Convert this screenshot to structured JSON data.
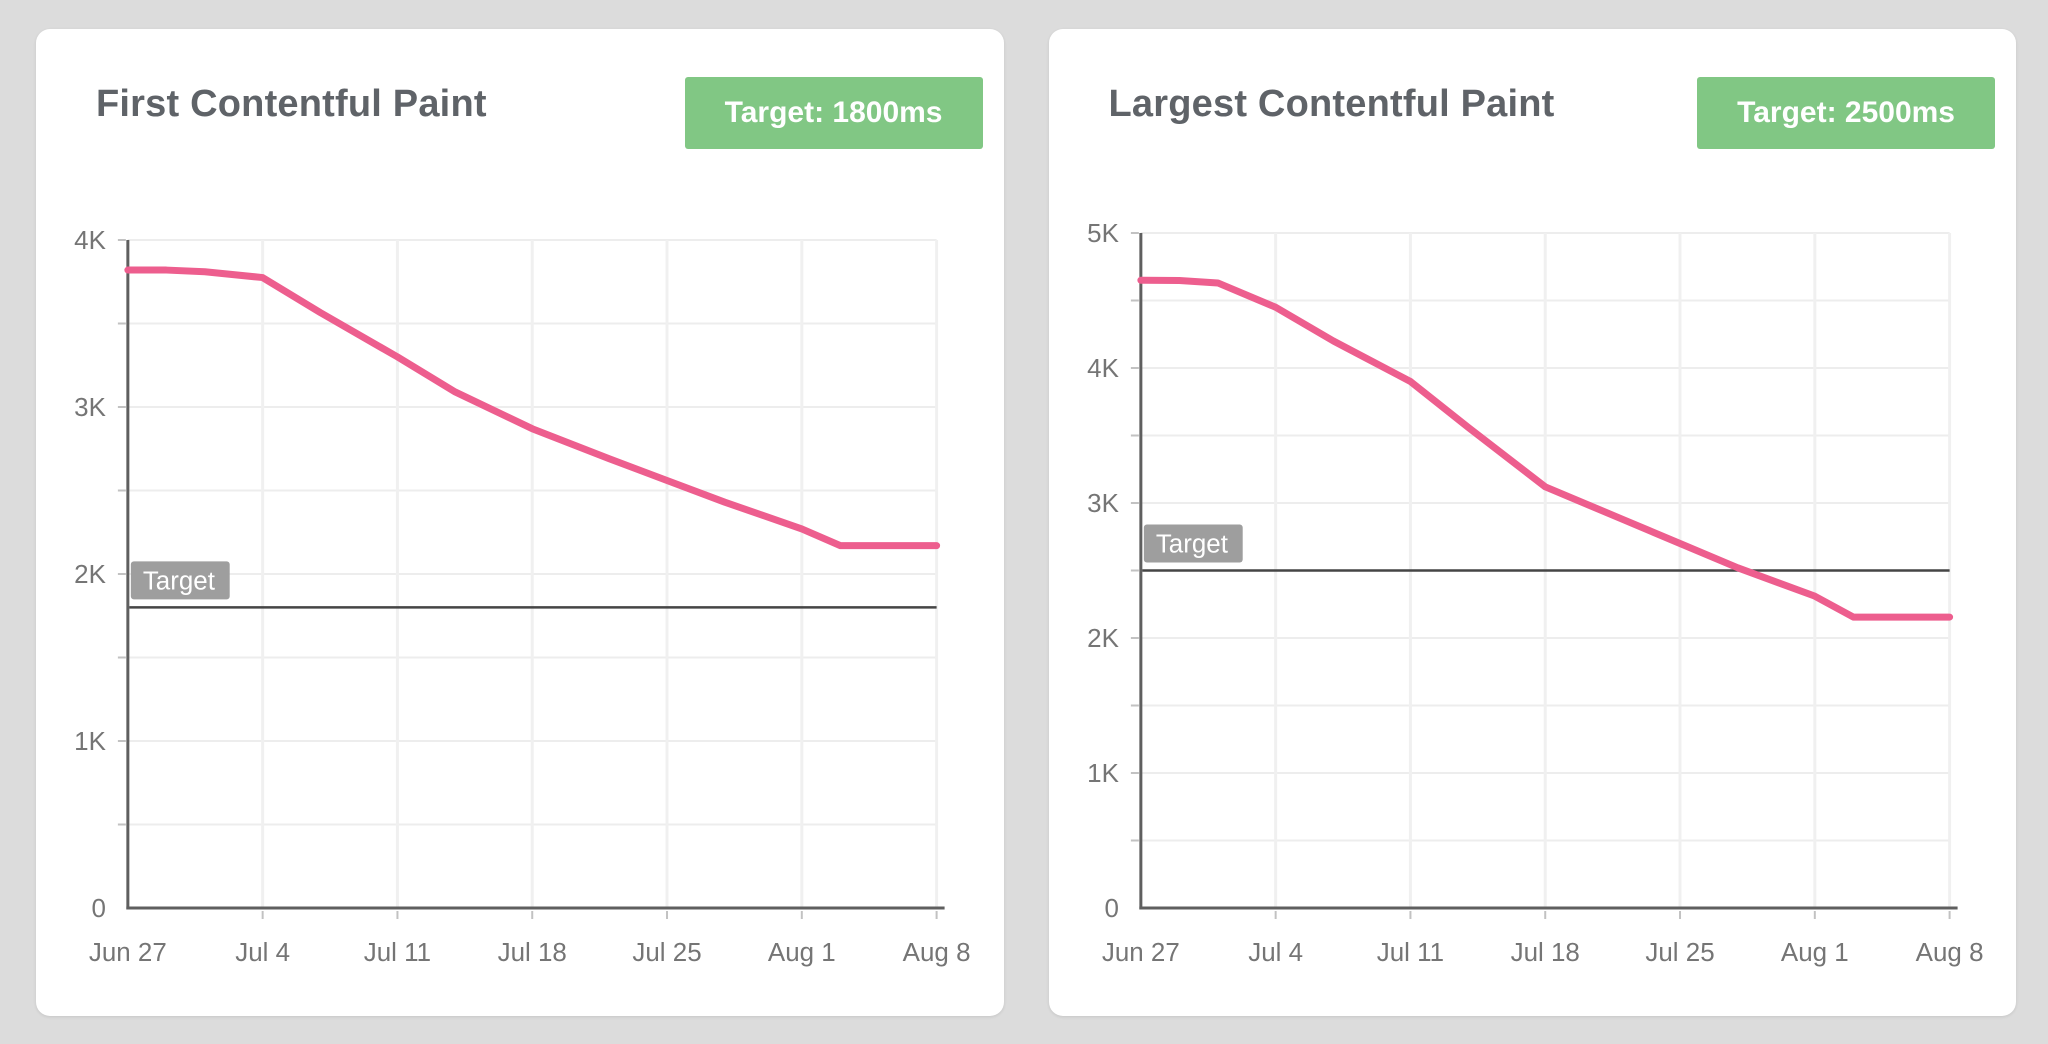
{
  "cards": [
    {
      "title": "First Contentful Paint",
      "badge": "Target: 1800ms"
    },
    {
      "title": "Largest Contentful Paint",
      "badge": "Target: 2500ms"
    }
  ],
  "colors": {
    "page_bg": "#dcdcdc",
    "card_bg": "#ffffff",
    "title_text": "#5f6368",
    "badge_bg": "#81c784",
    "badge_text": "#ffffff",
    "line_pink": "#ed5e8e",
    "axis": "#5f5f5f",
    "gridline": "#ededed",
    "tick_mark": "#c2c2c2",
    "tick_text": "#757575",
    "target_line": "#454545",
    "target_label_bg": "#9e9e9e",
    "target_label_text": "#ffffff"
  },
  "chart_data": [
    {
      "type": "line",
      "title": "First Contentful Paint",
      "target_badge": "Target: 1800ms",
      "x_tick_labels": [
        "Jun 27",
        "Jul 4",
        "Jul 11",
        "Jul 18",
        "Jul 25",
        "Aug 1",
        "Aug 8"
      ],
      "x_range_days": [
        0,
        42
      ],
      "y_tick_labels": [
        "0",
        "1K",
        "2K",
        "3K",
        "4K"
      ],
      "ylim": [
        0,
        4000
      ],
      "y_label_step": 1000,
      "y_grid_step": 500,
      "grid": "on",
      "legend": "none",
      "target_value": 1800,
      "target_label": "Target",
      "series": [
        {
          "name": "First Contentful Paint (ms)",
          "color": "#ed5e8e",
          "points_day_ms": [
            [
              0,
              3820
            ],
            [
              2,
              3820
            ],
            [
              4,
              3810
            ],
            [
              7,
              3775
            ],
            [
              10,
              3565
            ],
            [
              14,
              3300
            ],
            [
              17,
              3090
            ],
            [
              21,
              2870
            ],
            [
              25,
              2690
            ],
            [
              28,
              2560
            ],
            [
              31,
              2430
            ],
            [
              35,
              2270
            ],
            [
              37,
              2170
            ],
            [
              42,
              2170
            ]
          ]
        }
      ]
    },
    {
      "type": "line",
      "title": "Largest Contentful Paint",
      "target_badge": "Target: 2500ms",
      "x_tick_labels": [
        "Jun 27",
        "Jul 4",
        "Jul 11",
        "Jul 18",
        "Jul 25",
        "Aug 1",
        "Aug 8"
      ],
      "x_range_days": [
        0,
        42
      ],
      "y_tick_labels": [
        "0",
        "1K",
        "2K",
        "3K",
        "4K",
        "5K"
      ],
      "ylim": [
        0,
        5000
      ],
      "y_label_step": 1000,
      "y_grid_step": 500,
      "grid": "on",
      "legend": "none",
      "target_value": 2500,
      "target_label": "Target",
      "series": [
        {
          "name": "Largest Contentful Paint (ms)",
          "color": "#ed5e8e",
          "points_day_ms": [
            [
              0,
              4650
            ],
            [
              2,
              4648
            ],
            [
              4,
              4630
            ],
            [
              7,
              4450
            ],
            [
              10,
              4200
            ],
            [
              14,
              3900
            ],
            [
              17,
              3560
            ],
            [
              21,
              3120
            ],
            [
              25,
              2880
            ],
            [
              28,
              2700
            ],
            [
              31,
              2520
            ],
            [
              35,
              2310
            ],
            [
              37,
              2155
            ],
            [
              42,
              2155
            ]
          ]
        }
      ]
    }
  ]
}
